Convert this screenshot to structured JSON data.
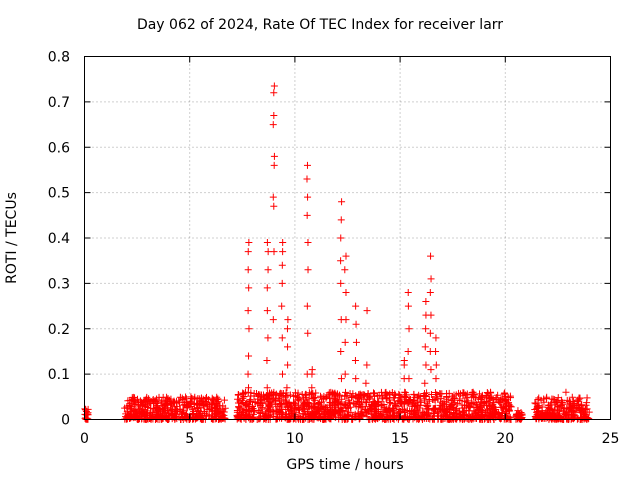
{
  "chart_data": {
    "type": "scatter",
    "title": "Day 062 of 2024, Rate Of TEC Index for receiver larr",
    "xlabel": "GPS time / hours",
    "ylabel": "ROTI / TECUs",
    "xlim": [
      0,
      25
    ],
    "ylim": [
      0,
      0.8
    ],
    "x_ticks": [
      0,
      5,
      10,
      15,
      20,
      25
    ],
    "x_tick_labels": [
      "0",
      "5",
      "10",
      "15",
      "20",
      "25"
    ],
    "y_ticks": [
      0,
      0.1,
      0.2,
      0.3,
      0.4,
      0.5,
      0.6,
      0.7,
      0.8
    ],
    "y_tick_labels": [
      "0",
      "0.1",
      "0.2",
      "0.3",
      "0.4",
      "0.5",
      "0.6",
      "0.7",
      "0.8"
    ],
    "grid": true,
    "legend": "none",
    "marker": "+",
    "marker_color": "#ff0000",
    "background_noise": [
      {
        "x_range": [
          0.0,
          0.2
        ],
        "y_max": 0.025
      },
      {
        "x_range": [
          1.9,
          6.7
        ],
        "y_max": 0.05
      },
      {
        "x_range": [
          7.2,
          20.3
        ],
        "y_max": 0.06
      },
      {
        "x_range": [
          20.5,
          20.8
        ],
        "y_max": 0.02
      },
      {
        "x_range": [
          21.4,
          24.0
        ],
        "y_max": 0.05
      }
    ],
    "spikes": [
      {
        "x": 7.8,
        "y_values": [
          0.07,
          0.1,
          0.14,
          0.2,
          0.24,
          0.29,
          0.33,
          0.37,
          0.39
        ]
      },
      {
        "x": 8.7,
        "y_values": [
          0.07,
          0.13,
          0.18,
          0.24,
          0.29,
          0.33,
          0.37,
          0.39
        ]
      },
      {
        "x": 9.0,
        "y_values": [
          0.22,
          0.37,
          0.47,
          0.49,
          0.56,
          0.58,
          0.65,
          0.67,
          0.72,
          0.735
        ]
      },
      {
        "x": 9.4,
        "y_values": [
          0.1,
          0.18,
          0.25,
          0.3,
          0.34,
          0.37,
          0.39
        ]
      },
      {
        "x": 9.65,
        "y_values": [
          0.07,
          0.12,
          0.16,
          0.2,
          0.22
        ]
      },
      {
        "x": 10.6,
        "y_values": [
          0.1,
          0.19,
          0.25,
          0.33,
          0.39,
          0.45,
          0.49,
          0.53,
          0.56
        ]
      },
      {
        "x": 10.8,
        "y_values": [
          0.07,
          0.1,
          0.11
        ]
      },
      {
        "x": 12.2,
        "y_values": [
          0.09,
          0.15,
          0.22,
          0.3,
          0.35,
          0.4,
          0.44,
          0.48
        ]
      },
      {
        "x": 12.4,
        "y_values": [
          0.1,
          0.17,
          0.22,
          0.28,
          0.33,
          0.36
        ]
      },
      {
        "x": 12.9,
        "y_values": [
          0.05,
          0.09,
          0.13,
          0.17,
          0.21,
          0.25
        ]
      },
      {
        "x": 13.4,
        "y_values": [
          0.08,
          0.12,
          0.24
        ]
      },
      {
        "x": 15.2,
        "y_values": [
          0.06,
          0.09,
          0.12,
          0.13
        ]
      },
      {
        "x": 15.4,
        "y_values": [
          0.09,
          0.15,
          0.2,
          0.25,
          0.28
        ]
      },
      {
        "x": 16.2,
        "y_values": [
          0.08,
          0.12,
          0.16,
          0.2,
          0.23,
          0.26
        ]
      },
      {
        "x": 16.45,
        "y_values": [
          0.11,
          0.15,
          0.19,
          0.23,
          0.28,
          0.31,
          0.36
        ]
      },
      {
        "x": 16.7,
        "y_values": [
          0.05,
          0.09,
          0.12,
          0.15,
          0.18
        ]
      },
      {
        "x": 18.5,
        "y_values": [
          0.06
        ]
      },
      {
        "x": 22.9,
        "y_values": [
          0.06
        ]
      }
    ]
  }
}
